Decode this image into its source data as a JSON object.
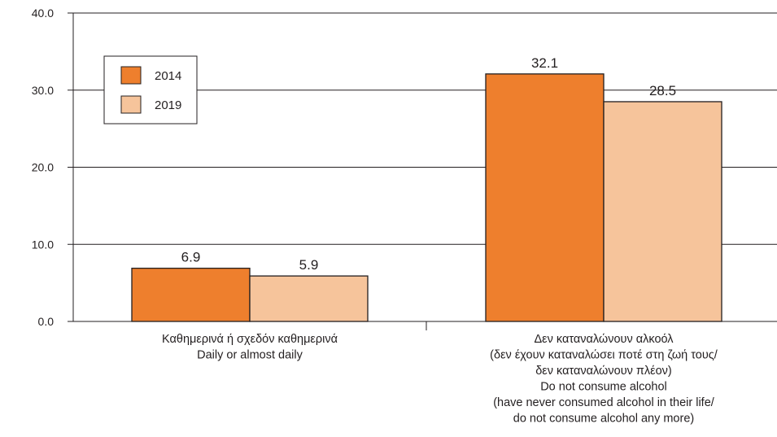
{
  "chart_data": {
    "type": "bar",
    "title": "",
    "xlabel": "",
    "ylabel": "",
    "ylim": [
      0,
      40
    ],
    "yticks": [
      0,
      10,
      20,
      30,
      40
    ],
    "ytick_labels": [
      "0.0",
      "10.0",
      "20.0",
      "30.0",
      "40.0"
    ],
    "grid": true,
    "legend_position": "top-left",
    "categories": [
      [
        "Καθημερινά ή σχεδόν καθημερινά",
        "Daily or almost daily"
      ],
      [
        "Δεν καταναλώνουν αλκοόλ",
        "(δεν έχουν καταναλώσει ποτέ στη ζωή τους/",
        "δεν καταναλώνουν πλέον)",
        "Do not consume alcohol",
        "(have never consumed alcohol in their life/",
        "do not consume alcohol any more)"
      ]
    ],
    "series": [
      {
        "name": "2014",
        "values": [
          6.9,
          32.1
        ],
        "labels": [
          "6.9",
          "32.1"
        ],
        "color": "#ee7f2d"
      },
      {
        "name": "2019",
        "values": [
          5.9,
          28.5
        ],
        "labels": [
          "5.9",
          "28.5"
        ],
        "color": "#f6c49b"
      }
    ]
  }
}
